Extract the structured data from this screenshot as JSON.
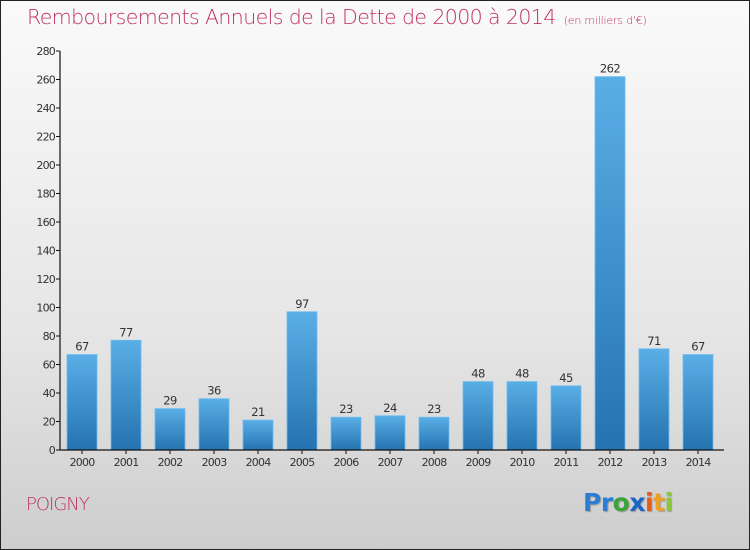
{
  "header": {
    "title": "Remboursements Annuels de la Dette de 2000 à 2014",
    "subtitle": "(en milliers d'€)"
  },
  "footer": {
    "city": "POIGNY",
    "logo": {
      "letters": [
        {
          "char": "P",
          "color": "#2a7fd4"
        },
        {
          "char": "r",
          "color": "#2a7fd4"
        },
        {
          "char": "o",
          "color": "#3aa33a"
        },
        {
          "char": "x",
          "color": "#1a66c8"
        },
        {
          "char": "i",
          "color": "#e8591a"
        },
        {
          "char": "t",
          "color": "#f0a020"
        },
        {
          "char": "i",
          "color": "#8cc63f"
        }
      ]
    }
  },
  "colors": {
    "bar_top": "#5aaee6",
    "bar_bottom": "#2573b0",
    "title": "#c0325f",
    "axis": "#111111"
  },
  "chart_data": {
    "type": "bar",
    "title": "Remboursements Annuels de la Dette de 2000 à 2014",
    "subtitle": "(en milliers d'€)",
    "xlabel": "",
    "ylabel": "",
    "categories": [
      "2000",
      "2001",
      "2002",
      "2003",
      "2004",
      "2005",
      "2006",
      "2007",
      "2008",
      "2009",
      "2010",
      "2011",
      "2012",
      "2013",
      "2014"
    ],
    "values": [
      67,
      77,
      29,
      36,
      21,
      97,
      23,
      24,
      23,
      48,
      48,
      45,
      262,
      71,
      67
    ],
    "ylim": [
      0,
      280
    ],
    "yticks": [
      0,
      20,
      40,
      60,
      80,
      100,
      120,
      140,
      160,
      180,
      200,
      220,
      240,
      260,
      280
    ],
    "grid": false,
    "data_labels": true,
    "legend": "none"
  }
}
